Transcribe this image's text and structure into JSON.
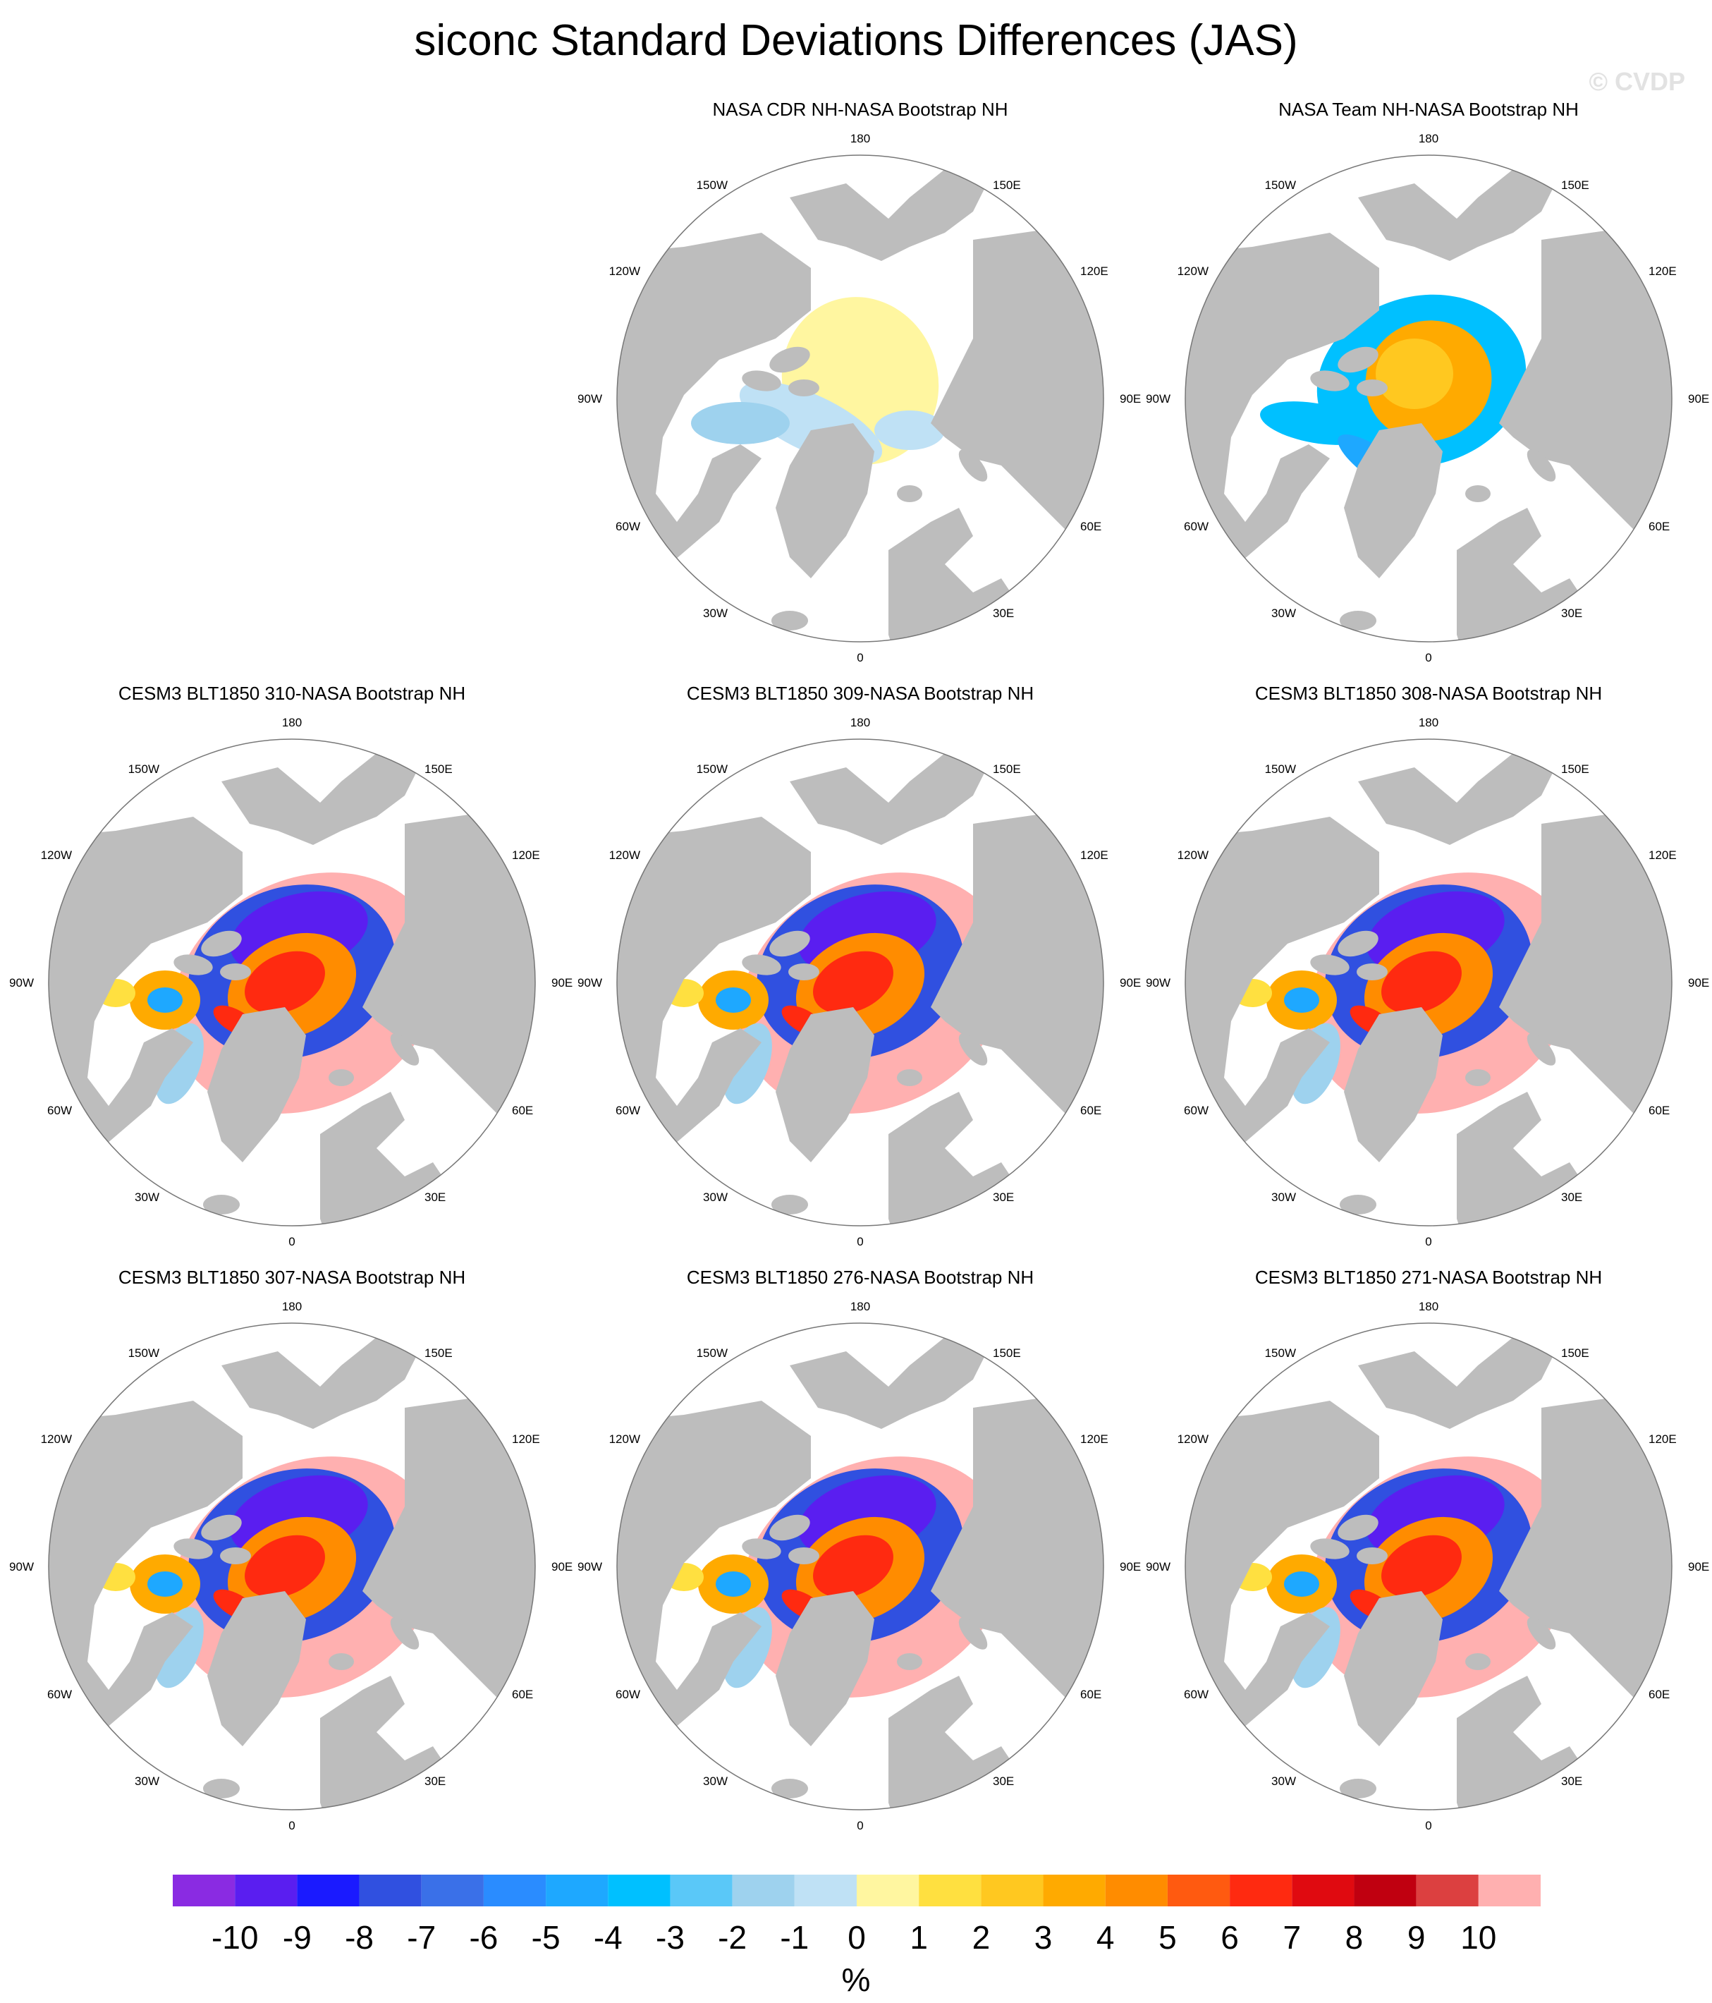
{
  "title": "siconc Standard Deviations Differences (JAS)",
  "watermark": "© CVDP",
  "longitude_labels": {
    "top": "180",
    "bottom": "0",
    "left": "90W",
    "right": "90E",
    "upper_left_outer": "120W",
    "upper_left_inner": "150W",
    "upper_right_inner": "150E",
    "upper_right_outer": "120E",
    "lower_left_outer": "60W",
    "lower_left_inner": "30W",
    "lower_right_inner": "30E",
    "lower_right_outer": "60E"
  },
  "colors": {
    "land": "#bdbdbd",
    "ocean": "#ffffff",
    "scale": [
      "#8a2be2",
      "#5a1ef0",
      "#1a1aff",
      "#3050e0",
      "#3a70e8",
      "#2a8cff",
      "#1ea8ff",
      "#00c0ff",
      "#5ac8f8",
      "#9ed2ee",
      "#bfe1f5",
      "#fff6a0",
      "#ffe040",
      "#ffc820",
      "#ffaa00",
      "#ff8c00",
      "#ff5a10",
      "#ff2a10",
      "#e00a10",
      "#c00010",
      "#dc4040",
      "#ffb0b0"
    ]
  },
  "panels": [
    {
      "title": "NASA CDR NH-NASA Bootstrap NH",
      "pattern": "cdr"
    },
    {
      "title": "NASA Team NH-NASA Bootstrap NH",
      "pattern": "team"
    },
    {
      "title": "CESM3 BLT1850 310-NASA Bootstrap NH",
      "pattern": "model"
    },
    {
      "title": "CESM3 BLT1850 309-NASA Bootstrap NH",
      "pattern": "model"
    },
    {
      "title": "CESM3 BLT1850 308-NASA Bootstrap NH",
      "pattern": "model"
    },
    {
      "title": "CESM3 BLT1850 307-NASA Bootstrap NH",
      "pattern": "model"
    },
    {
      "title": "CESM3 BLT1850 276-NASA Bootstrap NH",
      "pattern": "model"
    },
    {
      "title": "CESM3 BLT1850 271-NASA Bootstrap NH",
      "pattern": "model"
    }
  ],
  "colorbar": {
    "tick_labels": [
      "-10",
      "-9",
      "-8",
      "-7",
      "-6",
      "-5",
      "-4",
      "-3",
      "-2",
      "-1",
      "0",
      "1",
      "2",
      "3",
      "4",
      "5",
      "6",
      "7",
      "8",
      "9",
      "10"
    ],
    "unit": "%"
  }
}
